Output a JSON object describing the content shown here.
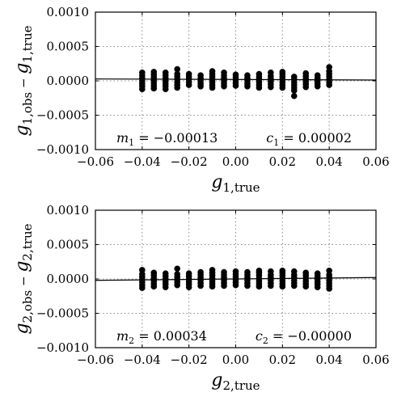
{
  "chart_data": [
    {
      "type": "scatter",
      "panel": "top",
      "xlabel": {
        "base": "g",
        "sub": "1,true"
      },
      "ylabel": {
        "base1": "g",
        "sub1": "1,obs",
        "minus": " − ",
        "base2": "g",
        "sub2": "1,true"
      },
      "xlim": [
        -0.06,
        0.06
      ],
      "ylim": [
        -0.001,
        0.001
      ],
      "xticks": [
        "−0.06",
        "−0.04",
        "−0.02",
        "0.00",
        "0.02",
        "0.04",
        "0.06"
      ],
      "yticks": [
        "−0.0010",
        "−0.0005",
        "0.0000",
        "0.0005",
        "0.0010"
      ],
      "grid": true,
      "fit_line": {
        "slope_label": "m",
        "slope_sub": "1",
        "slope_value": " = −0.00013",
        "intercept_label": "c",
        "intercept_sub": "1",
        "intercept_value": " = 0.00002",
        "m": -0.00013,
        "c": 2e-05
      },
      "x_values": [
        -0.04,
        -0.035,
        -0.03,
        -0.025,
        -0.02,
        -0.015,
        -0.01,
        -0.005,
        0.0,
        0.005,
        0.01,
        0.015,
        0.02,
        0.025,
        0.03,
        0.035,
        0.04
      ],
      "points": [
        [
          -0.04,
          -0.00012
        ],
        [
          -0.04,
          -8e-05
        ],
        [
          -0.04,
          -4e-05
        ],
        [
          -0.04,
          0.0
        ],
        [
          -0.04,
          4e-05
        ],
        [
          -0.04,
          8e-05
        ],
        [
          -0.04,
          0.00012
        ],
        [
          -0.035,
          -0.00011
        ],
        [
          -0.035,
          -7e-05
        ],
        [
          -0.035,
          -3e-05
        ],
        [
          -0.035,
          1e-05
        ],
        [
          -0.035,
          5e-05
        ],
        [
          -0.035,
          9e-05
        ],
        [
          -0.035,
          0.00013
        ],
        [
          -0.03,
          -0.00012
        ],
        [
          -0.03,
          -8e-05
        ],
        [
          -0.03,
          -4e-05
        ],
        [
          -0.03,
          0.0
        ],
        [
          -0.03,
          4e-05
        ],
        [
          -0.03,
          8e-05
        ],
        [
          -0.03,
          0.00012
        ],
        [
          -0.025,
          -0.0001
        ],
        [
          -0.025,
          -6e-05
        ],
        [
          -0.025,
          -2e-05
        ],
        [
          -0.025,
          2e-05
        ],
        [
          -0.025,
          6e-05
        ],
        [
          -0.025,
          0.0001
        ],
        [
          -0.025,
          0.00017
        ],
        [
          -0.02,
          -6e-05
        ],
        [
          -0.02,
          -2e-05
        ],
        [
          -0.02,
          2e-05
        ],
        [
          -0.02,
          6e-05
        ],
        [
          -0.02,
          0.0001
        ],
        [
          -0.015,
          -8e-05
        ],
        [
          -0.015,
          -4e-05
        ],
        [
          -0.015,
          0.0
        ],
        [
          -0.015,
          4e-05
        ],
        [
          -0.015,
          8e-05
        ],
        [
          -0.01,
          -0.0001
        ],
        [
          -0.01,
          -6e-05
        ],
        [
          -0.01,
          -2e-05
        ],
        [
          -0.01,
          2e-05
        ],
        [
          -0.01,
          6e-05
        ],
        [
          -0.01,
          0.0001
        ],
        [
          -0.01,
          0.00014
        ],
        [
          -0.005,
          -8e-05
        ],
        [
          -0.005,
          -4e-05
        ],
        [
          -0.005,
          0.0
        ],
        [
          -0.005,
          4e-05
        ],
        [
          -0.005,
          8e-05
        ],
        [
          -0.005,
          0.00012
        ],
        [
          0.0,
          -7e-05
        ],
        [
          0.0,
          -3e-05
        ],
        [
          0.0,
          1e-05
        ],
        [
          0.0,
          5e-05
        ],
        [
          0.0,
          9e-05
        ],
        [
          0.005,
          -8e-05
        ],
        [
          0.005,
          -4e-05
        ],
        [
          0.005,
          0.0
        ],
        [
          0.005,
          4e-05
        ],
        [
          0.005,
          8e-05
        ],
        [
          0.01,
          -0.0001
        ],
        [
          0.01,
          -6e-05
        ],
        [
          0.01,
          -2e-05
        ],
        [
          0.01,
          2e-05
        ],
        [
          0.01,
          6e-05
        ],
        [
          0.01,
          0.0001
        ],
        [
          0.015,
          -9e-05
        ],
        [
          0.015,
          -5e-05
        ],
        [
          0.015,
          -1e-05
        ],
        [
          0.015,
          3e-05
        ],
        [
          0.015,
          7e-05
        ],
        [
          0.015,
          0.00012
        ],
        [
          0.02,
          -0.0001
        ],
        [
          0.02,
          -6e-05
        ],
        [
          0.02,
          -2e-05
        ],
        [
          0.02,
          2e-05
        ],
        [
          0.02,
          6e-05
        ],
        [
          0.02,
          0.0001
        ],
        [
          0.02,
          0.00013
        ],
        [
          0.025,
          -0.00022
        ],
        [
          0.025,
          -0.00014
        ],
        [
          0.025,
          -0.0001
        ],
        [
          0.025,
          -6e-05
        ],
        [
          0.025,
          -2e-05
        ],
        [
          0.025,
          2e-05
        ],
        [
          0.025,
          6e-05
        ],
        [
          0.03,
          -9e-05
        ],
        [
          0.03,
          -5e-05
        ],
        [
          0.03,
          -1e-05
        ],
        [
          0.03,
          3e-05
        ],
        [
          0.03,
          7e-05
        ],
        [
          0.03,
          0.00011
        ],
        [
          0.035,
          -8e-05
        ],
        [
          0.035,
          -4e-05
        ],
        [
          0.035,
          0.0
        ],
        [
          0.035,
          4e-05
        ],
        [
          0.035,
          8e-05
        ],
        [
          0.04,
          -6e-05
        ],
        [
          0.04,
          -2e-05
        ],
        [
          0.04,
          2e-05
        ],
        [
          0.04,
          6e-05
        ],
        [
          0.04,
          0.0001
        ],
        [
          0.04,
          0.00014
        ],
        [
          0.04,
          0.0002
        ]
      ]
    },
    {
      "type": "scatter",
      "panel": "bottom",
      "xlabel": {
        "base": "g",
        "sub": "2,true"
      },
      "ylabel": {
        "base1": "g",
        "sub1": "2,obs",
        "minus": " − ",
        "base2": "g",
        "sub2": "2,true"
      },
      "xlim": [
        -0.06,
        0.06
      ],
      "ylim": [
        -0.001,
        0.001
      ],
      "xticks": [
        "−0.06",
        "−0.04",
        "−0.02",
        "0.00",
        "0.02",
        "0.04",
        "0.06"
      ],
      "yticks": [
        "−0.0010",
        "−0.0005",
        "0.0000",
        "0.0005",
        "0.0010"
      ],
      "grid": true,
      "fit_line": {
        "slope_label": "m",
        "slope_sub": "2",
        "slope_value": " = 0.00034",
        "intercept_label": "c",
        "intercept_sub": "2",
        "intercept_value": " = −0.00000",
        "m": 0.00034,
        "c": 0.0
      },
      "x_values": [
        -0.04,
        -0.035,
        -0.03,
        -0.025,
        -0.02,
        -0.015,
        -0.01,
        -0.005,
        0.0,
        0.005,
        0.01,
        0.015,
        0.02,
        0.025,
        0.03,
        0.035,
        0.04
      ],
      "points": [
        [
          -0.04,
          -0.00013
        ],
        [
          -0.04,
          -9e-05
        ],
        [
          -0.04,
          -5e-05
        ],
        [
          -0.04,
          -1e-05
        ],
        [
          -0.04,
          3e-05
        ],
        [
          -0.04,
          7e-05
        ],
        [
          -0.04,
          0.00013
        ],
        [
          -0.035,
          -0.00011
        ],
        [
          -0.035,
          -7e-05
        ],
        [
          -0.035,
          -3e-05
        ],
        [
          -0.035,
          1e-05
        ],
        [
          -0.035,
          5e-05
        ],
        [
          -0.035,
          9e-05
        ],
        [
          -0.03,
          -0.00012
        ],
        [
          -0.03,
          -8e-05
        ],
        [
          -0.03,
          -4e-05
        ],
        [
          -0.03,
          0.0
        ],
        [
          -0.03,
          4e-05
        ],
        [
          -0.03,
          8e-05
        ],
        [
          -0.025,
          -9e-05
        ],
        [
          -0.025,
          -5e-05
        ],
        [
          -0.025,
          -1e-05
        ],
        [
          -0.025,
          3e-05
        ],
        [
          -0.025,
          7e-05
        ],
        [
          -0.025,
          0.00015
        ],
        [
          -0.02,
          -0.00012
        ],
        [
          -0.02,
          -8e-05
        ],
        [
          -0.02,
          -4e-05
        ],
        [
          -0.02,
          0.0
        ],
        [
          -0.02,
          4e-05
        ],
        [
          -0.02,
          8e-05
        ],
        [
          -0.015,
          -0.0001
        ],
        [
          -0.015,
          -6e-05
        ],
        [
          -0.015,
          -2e-05
        ],
        [
          -0.015,
          2e-05
        ],
        [
          -0.015,
          6e-05
        ],
        [
          -0.015,
          0.0001
        ],
        [
          -0.01,
          -0.00011
        ],
        [
          -0.01,
          -7e-05
        ],
        [
          -0.01,
          -3e-05
        ],
        [
          -0.01,
          1e-05
        ],
        [
          -0.01,
          5e-05
        ],
        [
          -0.01,
          9e-05
        ],
        [
          -0.01,
          0.00013
        ],
        [
          -0.005,
          -0.0001
        ],
        [
          -0.005,
          -6e-05
        ],
        [
          -0.005,
          -2e-05
        ],
        [
          -0.005,
          2e-05
        ],
        [
          -0.005,
          6e-05
        ],
        [
          -0.005,
          0.0001
        ],
        [
          0.0,
          -9e-05
        ],
        [
          0.0,
          -5e-05
        ],
        [
          0.0,
          -1e-05
        ],
        [
          0.0,
          3e-05
        ],
        [
          0.0,
          7e-05
        ],
        [
          0.0,
          0.00011
        ],
        [
          0.005,
          -0.0001
        ],
        [
          0.005,
          -6e-05
        ],
        [
          0.005,
          -2e-05
        ],
        [
          0.005,
          2e-05
        ],
        [
          0.005,
          6e-05
        ],
        [
          0.005,
          0.0001
        ],
        [
          0.01,
          -0.00011
        ],
        [
          0.01,
          -7e-05
        ],
        [
          0.01,
          -3e-05
        ],
        [
          0.01,
          1e-05
        ],
        [
          0.01,
          5e-05
        ],
        [
          0.01,
          9e-05
        ],
        [
          0.01,
          0.00012
        ],
        [
          0.015,
          -0.0001
        ],
        [
          0.015,
          -6e-05
        ],
        [
          0.015,
          -2e-05
        ],
        [
          0.015,
          2e-05
        ],
        [
          0.015,
          6e-05
        ],
        [
          0.015,
          0.00011
        ],
        [
          0.02,
          -0.00011
        ],
        [
          0.02,
          -7e-05
        ],
        [
          0.02,
          -3e-05
        ],
        [
          0.02,
          1e-05
        ],
        [
          0.02,
          5e-05
        ],
        [
          0.02,
          9e-05
        ],
        [
          0.02,
          0.00012
        ],
        [
          0.025,
          -0.0001
        ],
        [
          0.025,
          -6e-05
        ],
        [
          0.025,
          -2e-05
        ],
        [
          0.025,
          2e-05
        ],
        [
          0.025,
          6e-05
        ],
        [
          0.025,
          0.00011
        ],
        [
          0.03,
          -0.00011
        ],
        [
          0.03,
          -7e-05
        ],
        [
          0.03,
          -3e-05
        ],
        [
          0.03,
          1e-05
        ],
        [
          0.03,
          5e-05
        ],
        [
          0.03,
          9e-05
        ],
        [
          0.035,
          -0.00012
        ],
        [
          0.035,
          -8e-05
        ],
        [
          0.035,
          -4e-05
        ],
        [
          0.035,
          0.0
        ],
        [
          0.035,
          4e-05
        ],
        [
          0.035,
          8e-05
        ],
        [
          0.04,
          -0.00014
        ],
        [
          0.04,
          -0.0001
        ],
        [
          0.04,
          -6e-05
        ],
        [
          0.04,
          -2e-05
        ],
        [
          0.04,
          2e-05
        ],
        [
          0.04,
          6e-05
        ],
        [
          0.04,
          0.00012
        ]
      ]
    }
  ]
}
